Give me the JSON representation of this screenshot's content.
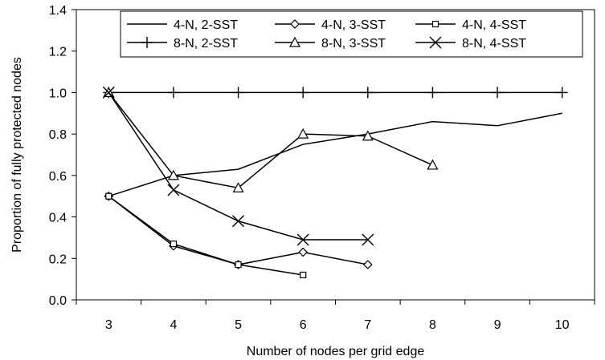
{
  "chart_data": {
    "type": "line",
    "title": "",
    "xlabel": "Number of nodes per grid edge",
    "ylabel": "Proportion of fully protected nodes",
    "xlim": [
      2.5,
      10.5
    ],
    "ylim": [
      0,
      1.4
    ],
    "xticks": [
      "3",
      "4",
      "5",
      "6",
      "7",
      "8",
      "9",
      "10"
    ],
    "yticks": [
      "0.0",
      "0.2",
      "0.4",
      "0.6",
      "0.8",
      "1.0",
      "1.2",
      "1.4"
    ],
    "grid": false,
    "legend_position": "top",
    "series": [
      {
        "name": "4-N, 2-SST",
        "marker": "none",
        "x": [
          3,
          4,
          5,
          6,
          7,
          8,
          9,
          10
        ],
        "y": [
          0.5,
          0.6,
          0.63,
          0.75,
          0.8,
          0.86,
          0.84,
          0.9
        ]
      },
      {
        "name": "4-N, 3-SST",
        "marker": "diamond",
        "x": [
          3,
          4,
          5,
          6,
          7
        ],
        "y": [
          0.5,
          0.26,
          0.17,
          0.23,
          0.17
        ]
      },
      {
        "name": "4-N, 4-SST",
        "marker": "square",
        "x": [
          3,
          4,
          5,
          6
        ],
        "y": [
          0.5,
          0.27,
          0.17,
          0.12
        ]
      },
      {
        "name": "8-N, 2-SST",
        "marker": "plus",
        "x": [
          3,
          4,
          5,
          6,
          7,
          8,
          9,
          10
        ],
        "y": [
          1.0,
          1.0,
          1.0,
          1.0,
          1.0,
          1.0,
          1.0,
          1.0
        ]
      },
      {
        "name": "8-N, 3-SST",
        "marker": "triangle",
        "x": [
          3,
          4,
          5,
          6,
          7,
          8
        ],
        "y": [
          1.0,
          0.6,
          0.54,
          0.8,
          0.79,
          0.65
        ]
      },
      {
        "name": "8-N, 4-SST",
        "marker": "x",
        "x": [
          3,
          4,
          5,
          6,
          7
        ],
        "y": [
          1.0,
          0.53,
          0.38,
          0.29,
          0.29
        ]
      }
    ]
  }
}
